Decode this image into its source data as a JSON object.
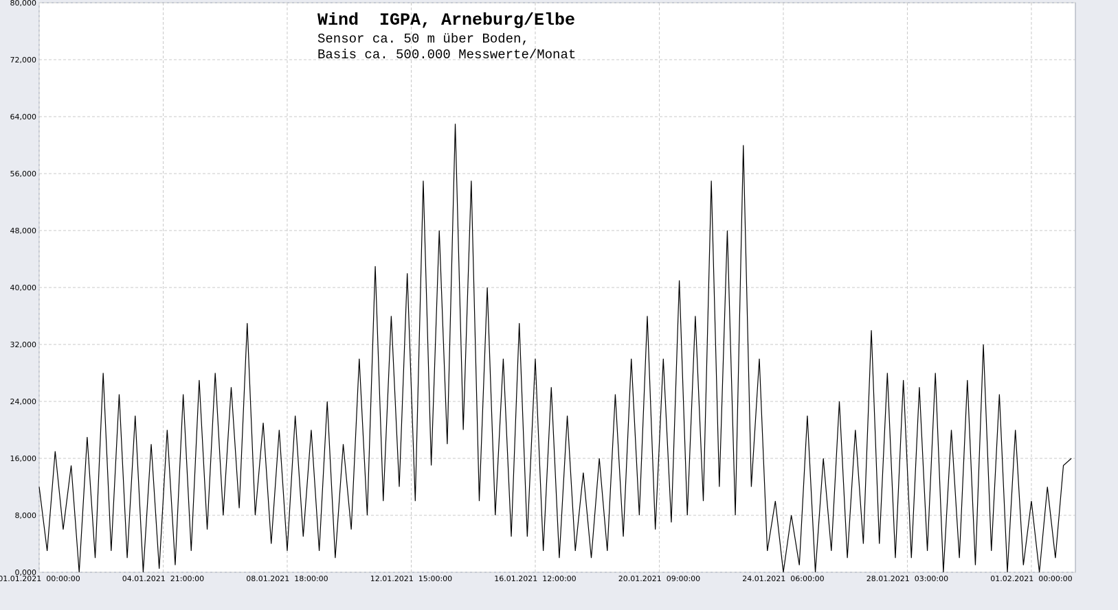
{
  "chart_data": {
    "type": "line",
    "title": "Wind  IGPA, Arneburg/Elbe",
    "subtitle": [
      "Sensor ca. 50 m über Boden,",
      "Basis ca. 500.000 Messwerte/Monat"
    ],
    "color": "#000000",
    "grid": true,
    "xlim": [
      "2021-01-01T00:00",
      "2021-02-02T09:00"
    ],
    "ylim": [
      0,
      80000
    ],
    "yticks": [
      {
        "value": 0,
        "label": "0,000"
      },
      {
        "value": 8000,
        "label": "8,000"
      },
      {
        "value": 16000,
        "label": "16,000"
      },
      {
        "value": 24000,
        "label": "24,000"
      },
      {
        "value": 32000,
        "label": "32,000"
      },
      {
        "value": 40000,
        "label": "40,000"
      },
      {
        "value": 48000,
        "label": "48,000"
      },
      {
        "value": 56000,
        "label": "56,000"
      },
      {
        "value": 64000,
        "label": "64,000"
      },
      {
        "value": 72000,
        "label": "72,000"
      },
      {
        "value": 80000,
        "label": "80,000"
      }
    ],
    "xticks": [
      {
        "value": "2021-01-01T00:00",
        "label": "01.01.2021  00:00:00"
      },
      {
        "value": "2021-01-04T21:00",
        "label": "04.01.2021  21:00:00"
      },
      {
        "value": "2021-01-08T18:00",
        "label": "08.01.2021  18:00:00"
      },
      {
        "value": "2021-01-12T15:00",
        "label": "12.01.2021  15:00:00"
      },
      {
        "value": "2021-01-16T12:00",
        "label": "16.01.2021  12:00:00"
      },
      {
        "value": "2021-01-20T09:00",
        "label": "20.01.2021  09:00:00"
      },
      {
        "value": "2021-01-24T06:00",
        "label": "24.01.2021  06:00:00"
      },
      {
        "value": "2021-01-28T03:00",
        "label": "28.01.2021  03:00:00"
      },
      {
        "value": "2021-02-01T00:00",
        "label": "01.02.2021  00:00:00"
      }
    ],
    "x": [
      "2021-01-01T00:00",
      "2021-01-01T06:00",
      "2021-01-01T12:00",
      "2021-01-01T18:00",
      "2021-01-02T00:00",
      "2021-01-02T06:00",
      "2021-01-02T12:00",
      "2021-01-02T18:00",
      "2021-01-03T00:00",
      "2021-01-03T06:00",
      "2021-01-03T12:00",
      "2021-01-03T18:00",
      "2021-01-04T00:00",
      "2021-01-04T06:00",
      "2021-01-04T12:00",
      "2021-01-04T18:00",
      "2021-01-05T00:00",
      "2021-01-05T06:00",
      "2021-01-05T12:00",
      "2021-01-05T18:00",
      "2021-01-06T00:00",
      "2021-01-06T06:00",
      "2021-01-06T12:00",
      "2021-01-06T18:00",
      "2021-01-07T00:00",
      "2021-01-07T06:00",
      "2021-01-07T12:00",
      "2021-01-07T18:00",
      "2021-01-08T00:00",
      "2021-01-08T06:00",
      "2021-01-08T12:00",
      "2021-01-08T18:00",
      "2021-01-09T00:00",
      "2021-01-09T06:00",
      "2021-01-09T12:00",
      "2021-01-09T18:00",
      "2021-01-10T00:00",
      "2021-01-10T06:00",
      "2021-01-10T12:00",
      "2021-01-10T18:00",
      "2021-01-11T00:00",
      "2021-01-11T06:00",
      "2021-01-11T12:00",
      "2021-01-11T18:00",
      "2021-01-12T00:00",
      "2021-01-12T06:00",
      "2021-01-12T12:00",
      "2021-01-12T18:00",
      "2021-01-13T00:00",
      "2021-01-13T06:00",
      "2021-01-13T12:00",
      "2021-01-13T18:00",
      "2021-01-14T00:00",
      "2021-01-14T06:00",
      "2021-01-14T12:00",
      "2021-01-14T18:00",
      "2021-01-15T00:00",
      "2021-01-15T06:00",
      "2021-01-15T12:00",
      "2021-01-15T18:00",
      "2021-01-16T00:00",
      "2021-01-16T06:00",
      "2021-01-16T12:00",
      "2021-01-16T18:00",
      "2021-01-17T00:00",
      "2021-01-17T06:00",
      "2021-01-17T12:00",
      "2021-01-17T18:00",
      "2021-01-18T00:00",
      "2021-01-18T06:00",
      "2021-01-18T12:00",
      "2021-01-18T18:00",
      "2021-01-19T00:00",
      "2021-01-19T06:00",
      "2021-01-19T12:00",
      "2021-01-19T18:00",
      "2021-01-20T00:00",
      "2021-01-20T06:00",
      "2021-01-20T12:00",
      "2021-01-20T18:00",
      "2021-01-21T00:00",
      "2021-01-21T06:00",
      "2021-01-21T12:00",
      "2021-01-21T18:00",
      "2021-01-22T00:00",
      "2021-01-22T06:00",
      "2021-01-22T12:00",
      "2021-01-22T18:00",
      "2021-01-23T00:00",
      "2021-01-23T06:00",
      "2021-01-23T12:00",
      "2021-01-23T18:00",
      "2021-01-24T00:00",
      "2021-01-24T06:00",
      "2021-01-24T12:00",
      "2021-01-24T18:00",
      "2021-01-25T00:00",
      "2021-01-25T06:00",
      "2021-01-25T12:00",
      "2021-01-25T18:00",
      "2021-01-26T00:00",
      "2021-01-26T06:00",
      "2021-01-26T12:00",
      "2021-01-26T18:00",
      "2021-01-27T00:00",
      "2021-01-27T06:00",
      "2021-01-27T12:00",
      "2021-01-27T18:00",
      "2021-01-28T00:00",
      "2021-01-28T06:00",
      "2021-01-28T12:00",
      "2021-01-28T18:00",
      "2021-01-29T00:00",
      "2021-01-29T06:00",
      "2021-01-29T12:00",
      "2021-01-29T18:00",
      "2021-01-30T00:00",
      "2021-01-30T06:00",
      "2021-01-30T12:00",
      "2021-01-30T18:00",
      "2021-01-31T00:00",
      "2021-01-31T06:00",
      "2021-01-31T12:00",
      "2021-01-31T18:00",
      "2021-02-01T00:00",
      "2021-02-01T06:00",
      "2021-02-01T12:00",
      "2021-02-01T18:00",
      "2021-02-02T00:00",
      "2021-02-02T06:00"
    ],
    "values": [
      12000,
      3000,
      17000,
      6000,
      15000,
      0,
      19000,
      2000,
      28000,
      3000,
      25000,
      2000,
      22000,
      0,
      18000,
      500,
      20000,
      1000,
      25000,
      3000,
      27000,
      6000,
      28000,
      8000,
      26000,
      9000,
      35000,
      8000,
      21000,
      4000,
      20000,
      3000,
      22000,
      5000,
      20000,
      3000,
      24000,
      2000,
      18000,
      6000,
      30000,
      8000,
      43000,
      10000,
      36000,
      12000,
      42000,
      10000,
      55000,
      15000,
      48000,
      18000,
      63000,
      20000,
      55000,
      10000,
      40000,
      8000,
      30000,
      5000,
      35000,
      5000,
      30000,
      3000,
      26000,
      2000,
      22000,
      3000,
      14000,
      2000,
      16000,
      3000,
      25000,
      5000,
      30000,
      8000,
      36000,
      6000,
      30000,
      7000,
      41000,
      8000,
      36000,
      10000,
      55000,
      12000,
      48000,
      8000,
      60000,
      12000,
      30000,
      3000,
      10000,
      0,
      8000,
      1000,
      22000,
      0,
      16000,
      3000,
      24000,
      2000,
      20000,
      4000,
      34000,
      4000,
      28000,
      2000,
      27000,
      2000,
      26000,
      3000,
      28000,
      0,
      20000,
      2000,
      27000,
      1000,
      32000,
      3000,
      25000,
      0,
      20000,
      1000,
      10000,
      0,
      12000,
      2000,
      15000,
      16000
    ]
  }
}
